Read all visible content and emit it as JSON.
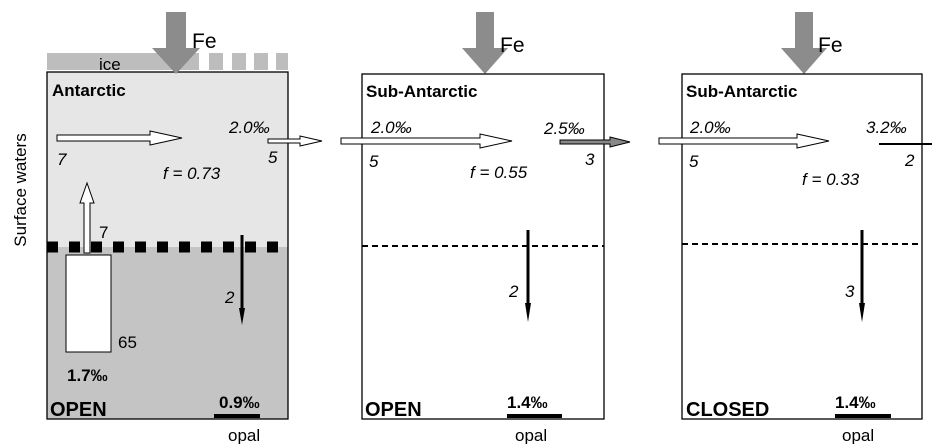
{
  "side_label": "Surface waters",
  "panels": [
    {
      "iron": "Fe",
      "ice": "ice",
      "title": "Antarctic",
      "in_value": "7",
      "out_value": "5",
      "out_delta": "2.0‰",
      "f": "f = 0.73",
      "upwelling": "7",
      "sinking": "2",
      "reservoir": "65",
      "deep_delta": "1.7‰",
      "state": "OPEN",
      "opal_delta": "0.9‰",
      "opal": "opal"
    },
    {
      "iron": "Fe",
      "title": "Sub-Antarctic",
      "in_delta": "2.0‰",
      "in_value": "5",
      "out_delta": "2.5‰",
      "out_value": "3",
      "f": "f = 0.55",
      "sinking": "2",
      "state": "OPEN",
      "opal_delta": "1.4‰",
      "opal": "opal"
    },
    {
      "iron": "Fe",
      "title": "Sub-Antarctic",
      "in_delta": "2.0‰",
      "in_value": "5",
      "out_delta": "3.2‰",
      "out_value": "2",
      "f": "f = 0.33",
      "sinking": "3",
      "state": "CLOSED",
      "opal_delta": "1.4‰",
      "opal": "opal"
    }
  ]
}
